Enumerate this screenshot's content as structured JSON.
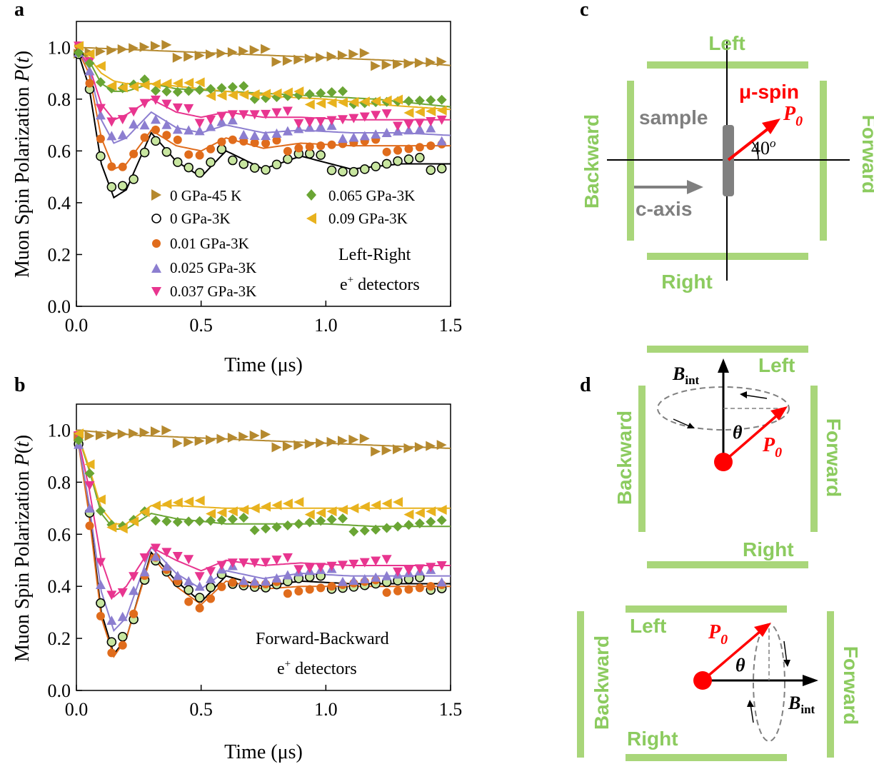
{
  "panel_labels": {
    "a": "a",
    "b": "b",
    "c": "c",
    "d": "d"
  },
  "ylabel_main": "Muon Spin Polarization ",
  "ylabel_italic": "P",
  "ylabel_tail": "(",
  "ylabel_t": "t",
  "ylabel_close": ")",
  "xlabel": "Time (μs)",
  "annotations": {
    "a_line1": "Left-Right",
    "a_line2": "e",
    "a_sup": "+",
    "a_line2b": " detectors",
    "b_line1": "Forward-Backward",
    "b_line2": "e",
    "b_sup": "+",
    "b_line2b": " detectors"
  },
  "legend": [
    {
      "label": "0 GPa-45 K",
      "marker": "triangle-right",
      "color": "#b5892e"
    },
    {
      "label": "0 GPa-3K",
      "marker": "circle-open",
      "color": "#000000"
    },
    {
      "label": "0.01 GPa-3K",
      "marker": "circle",
      "color": "#e06c1c"
    },
    {
      "label": "0.025 GPa-3K",
      "marker": "triangle-up",
      "color": "#8c7ed0"
    },
    {
      "label": "0.037 GPa-3K",
      "marker": "triangle-down",
      "color": "#e8358f"
    },
    {
      "label": "0.065 GPa-3K",
      "marker": "diamond",
      "color": "#6aa534"
    },
    {
      "label": "0.09 GPa-3K",
      "marker": "triangle-left",
      "color": "#e8b21e"
    }
  ],
  "chart_data": [
    {
      "panel": "a",
      "type": "scatter",
      "xlabel": "Time (μs)",
      "ylabel": "Muon Spin Polarization P(t)",
      "xlim": [
        0.0,
        1.5
      ],
      "ylim": [
        0.0,
        1.1
      ],
      "xticks": [
        "0.0",
        "0.5",
        "1.0",
        "1.5"
      ],
      "yticks": [
        "0.0",
        "0.2",
        "0.4",
        "0.6",
        "0.8",
        "1.0"
      ],
      "series": [
        {
          "name": "0 GPa-45 K",
          "x": [
            0.0,
            0.25,
            0.5,
            0.75,
            1.0,
            1.25,
            1.5
          ],
          "y": [
            1.0,
            0.99,
            0.98,
            0.97,
            0.96,
            0.95,
            0.93
          ]
        },
        {
          "name": "0 GPa-3K",
          "x": [
            0.0,
            0.05,
            0.1,
            0.15,
            0.2,
            0.3,
            0.4,
            0.5,
            0.6,
            0.75,
            0.9,
            1.1,
            1.3,
            1.5
          ],
          "y": [
            1.0,
            0.85,
            0.55,
            0.42,
            0.45,
            0.67,
            0.56,
            0.5,
            0.6,
            0.53,
            0.58,
            0.53,
            0.55,
            0.55
          ]
        },
        {
          "name": "0.01 GPa-3K",
          "x": [
            0.0,
            0.05,
            0.1,
            0.15,
            0.2,
            0.3,
            0.4,
            0.5,
            0.6,
            0.75,
            0.9,
            1.1,
            1.3,
            1.5
          ],
          "y": [
            1.0,
            0.9,
            0.65,
            0.53,
            0.55,
            0.68,
            0.62,
            0.6,
            0.65,
            0.61,
            0.63,
            0.62,
            0.62,
            0.62
          ]
        },
        {
          "name": "0.025 GPa-3K",
          "x": [
            0.0,
            0.05,
            0.1,
            0.15,
            0.2,
            0.3,
            0.4,
            0.5,
            0.6,
            0.75,
            0.9,
            1.1,
            1.3,
            1.5
          ],
          "y": [
            1.0,
            0.92,
            0.72,
            0.63,
            0.65,
            0.75,
            0.69,
            0.67,
            0.7,
            0.67,
            0.68,
            0.67,
            0.67,
            0.66
          ]
        },
        {
          "name": "0.037 GPa-3K",
          "x": [
            0.0,
            0.05,
            0.1,
            0.15,
            0.2,
            0.3,
            0.4,
            0.5,
            0.6,
            0.75,
            0.9,
            1.1,
            1.3,
            1.5
          ],
          "y": [
            1.0,
            0.93,
            0.78,
            0.72,
            0.74,
            0.8,
            0.75,
            0.73,
            0.75,
            0.73,
            0.73,
            0.72,
            0.72,
            0.72
          ]
        },
        {
          "name": "0.065 GPa-3K",
          "x": [
            0.0,
            0.05,
            0.1,
            0.15,
            0.2,
            0.3,
            0.4,
            0.6,
            0.8,
            1.0,
            1.2,
            1.5
          ],
          "y": [
            1.0,
            0.95,
            0.86,
            0.83,
            0.83,
            0.86,
            0.84,
            0.83,
            0.82,
            0.81,
            0.8,
            0.77
          ]
        },
        {
          "name": "0.09 GPa-3K",
          "x": [
            0.0,
            0.05,
            0.1,
            0.15,
            0.2,
            0.3,
            0.4,
            0.6,
            0.8,
            1.0,
            1.2,
            1.5
          ],
          "y": [
            1.0,
            0.96,
            0.9,
            0.87,
            0.86,
            0.86,
            0.85,
            0.83,
            0.81,
            0.8,
            0.78,
            0.76
          ]
        }
      ]
    },
    {
      "panel": "b",
      "type": "scatter",
      "xlabel": "Time (μs)",
      "ylabel": "Muon Spin Polarization P(t)",
      "xlim": [
        0.0,
        1.5
      ],
      "ylim": [
        0.0,
        1.1
      ],
      "xticks": [
        "0.0",
        "0.5",
        "1.0",
        "1.5"
      ],
      "yticks": [
        "0.0",
        "0.2",
        "0.4",
        "0.6",
        "0.8",
        "1.0"
      ],
      "series": [
        {
          "name": "0 GPa-45 K",
          "x": [
            0.0,
            0.25,
            0.5,
            0.75,
            1.0,
            1.25,
            1.5
          ],
          "y": [
            1.0,
            0.98,
            0.97,
            0.96,
            0.95,
            0.94,
            0.93
          ]
        },
        {
          "name": "0 GPa-3K",
          "x": [
            0.0,
            0.05,
            0.1,
            0.15,
            0.2,
            0.3,
            0.4,
            0.5,
            0.6,
            0.75,
            0.9,
            1.1,
            1.3,
            1.5
          ],
          "y": [
            1.0,
            0.7,
            0.3,
            0.14,
            0.2,
            0.53,
            0.42,
            0.34,
            0.44,
            0.4,
            0.42,
            0.41,
            0.41,
            0.41
          ]
        },
        {
          "name": "0.01 GPa-3K",
          "x": [
            0.0,
            0.05,
            0.1,
            0.15,
            0.2,
            0.3,
            0.4,
            0.5,
            0.6,
            0.75,
            0.9,
            1.1,
            1.3,
            1.5
          ],
          "y": [
            1.0,
            0.68,
            0.28,
            0.13,
            0.2,
            0.52,
            0.4,
            0.33,
            0.42,
            0.39,
            0.4,
            0.4,
            0.4,
            0.4
          ]
        },
        {
          "name": "0.025 GPa-3K",
          "x": [
            0.0,
            0.05,
            0.1,
            0.15,
            0.2,
            0.3,
            0.4,
            0.5,
            0.6,
            0.75,
            0.9,
            1.1,
            1.3,
            1.5
          ],
          "y": [
            1.0,
            0.72,
            0.38,
            0.23,
            0.28,
            0.55,
            0.45,
            0.39,
            0.46,
            0.43,
            0.45,
            0.44,
            0.44,
            0.44
          ]
        },
        {
          "name": "0.037 GPa-3K",
          "x": [
            0.0,
            0.05,
            0.1,
            0.15,
            0.2,
            0.3,
            0.4,
            0.5,
            0.6,
            0.75,
            0.9,
            1.1,
            1.3,
            1.5
          ],
          "y": [
            1.0,
            0.78,
            0.5,
            0.36,
            0.4,
            0.55,
            0.5,
            0.46,
            0.5,
            0.48,
            0.49,
            0.48,
            0.48,
            0.48
          ]
        },
        {
          "name": "0.065 GPa-3K",
          "x": [
            0.0,
            0.05,
            0.1,
            0.15,
            0.2,
            0.3,
            0.4,
            0.6,
            0.8,
            1.0,
            1.2,
            1.5
          ],
          "y": [
            1.0,
            0.85,
            0.68,
            0.62,
            0.62,
            0.68,
            0.66,
            0.64,
            0.64,
            0.64,
            0.63,
            0.63
          ]
        },
        {
          "name": "0.09 GPa-3K",
          "x": [
            0.0,
            0.05,
            0.1,
            0.15,
            0.2,
            0.3,
            0.4,
            0.6,
            0.8,
            1.0,
            1.2,
            1.5
          ],
          "y": [
            1.0,
            0.86,
            0.7,
            0.64,
            0.64,
            0.71,
            0.71,
            0.7,
            0.7,
            0.7,
            0.7,
            0.7
          ]
        }
      ]
    }
  ],
  "diagram_c": {
    "left": "Left",
    "right": "Right",
    "backward": "Backward",
    "forward": "Forward",
    "mu_spin": "μ-spin",
    "p0": "P",
    "p0_sub": "0",
    "sample": "sample",
    "c_axis": "c-axis",
    "angle": "40",
    "angle_sup": "o"
  },
  "diagram_d1": {
    "left": "Left",
    "right": "Right",
    "backward": "Backward",
    "forward": "Forward",
    "b": "B",
    "b_sub": "int",
    "theta": "θ",
    "p0": "P",
    "p0_sub": "0"
  },
  "diagram_d2": {
    "left": "Left",
    "right": "Right",
    "backward": "Backward",
    "forward": "Forward",
    "b": "B",
    "b_sub": "int",
    "theta": "θ",
    "p0": "P",
    "p0_sub": "0"
  },
  "colors": {
    "detector": "#a9d67a",
    "detector_text": "#8ccb5f",
    "spin": "#ff0000",
    "sample": "#7f7f7f"
  }
}
